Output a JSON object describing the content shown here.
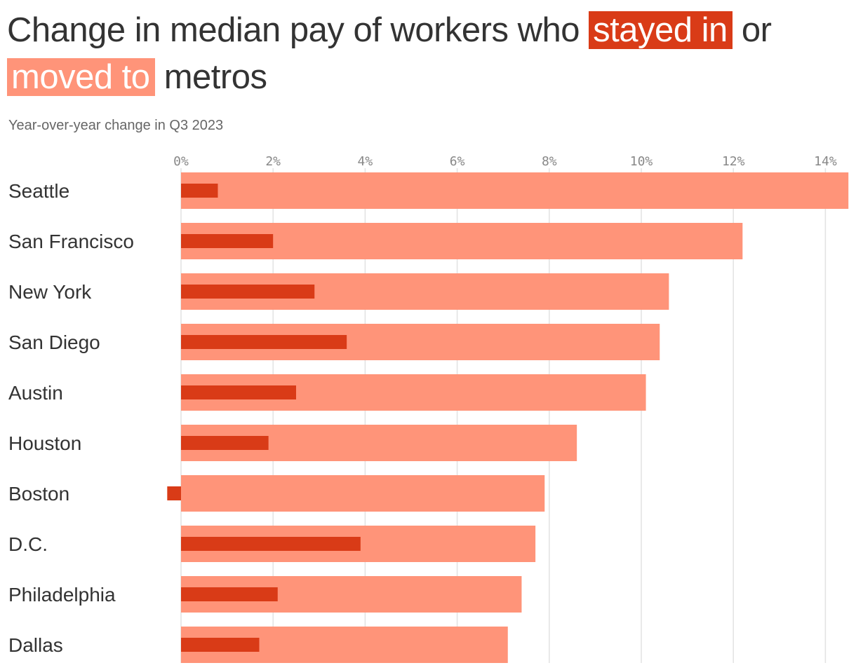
{
  "header": {
    "title_before": "Change in median pay of workers who",
    "title_hl1": "stayed in",
    "title_mid": "or",
    "title_hl2": "moved to",
    "title_after": "metros",
    "subtitle": "Year-over-year change in Q3 2023"
  },
  "colors": {
    "stayed": "#d93b17",
    "moved": "#ff9479",
    "grid": "#e2e2e2"
  },
  "chart_data": {
    "type": "bar",
    "orientation": "horizontal",
    "title": "Change in median pay of workers who stayed in or moved to metros",
    "subtitle": "Year-over-year change in Q3 2023",
    "xlim": [
      0,
      14.5
    ],
    "x_ticks": [
      0,
      2,
      4,
      6,
      8,
      10,
      12,
      14
    ],
    "x_tick_labels": [
      "0%",
      "2%",
      "4%",
      "6%",
      "8%",
      "10%",
      "12%",
      "14%"
    ],
    "categories": [
      "Seattle",
      "San Francisco",
      "New York",
      "San Diego",
      "Austin",
      "Houston",
      "Boston",
      "D.C.",
      "Philadelphia",
      "Dallas"
    ],
    "series": [
      {
        "name": "moved to",
        "values": [
          14.5,
          12.2,
          10.6,
          10.4,
          10.1,
          8.6,
          7.9,
          7.7,
          7.4,
          7.1
        ]
      },
      {
        "name": "stayed in",
        "values": [
          0.8,
          2.0,
          2.9,
          3.6,
          2.5,
          1.9,
          -0.3,
          3.9,
          2.1,
          1.7
        ]
      }
    ]
  }
}
